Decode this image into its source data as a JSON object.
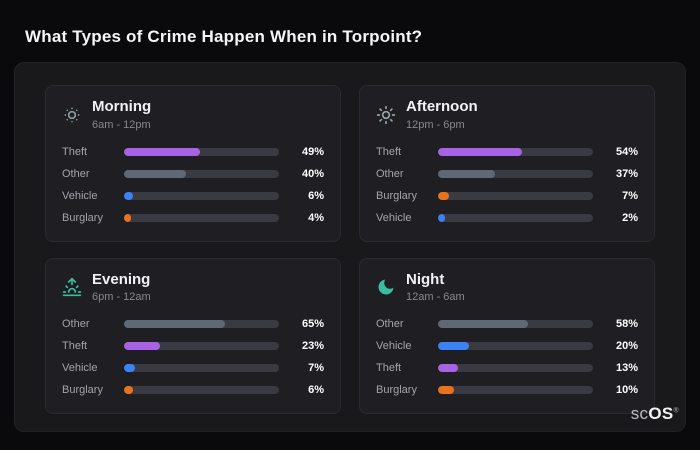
{
  "page": {
    "title": "What Types of Crime Happen When in Torpoint?",
    "brand": {
      "prefix": "sc",
      "suffix": "OS",
      "reg": "®"
    }
  },
  "colors": {
    "theft": "#a763e3",
    "other": "#5f6976",
    "vehicle": "#3b82f6",
    "burglary": "#e8731c",
    "track": "#3a3a42",
    "icon_morning": "#8d9ba0",
    "icon_afternoon": "#9aa2ab",
    "icon_evening": "#3cbc9e",
    "icon_night": "#3cbc9e"
  },
  "chart_data": [
    {
      "type": "bar",
      "title": "Morning",
      "subtitle": "6am - 12pm",
      "icon": "sun-dim-icon",
      "xlim": [
        0,
        100
      ],
      "categories": [
        "Theft",
        "Other",
        "Vehicle",
        "Burglary"
      ],
      "values": [
        49,
        40,
        6,
        4
      ],
      "rows": [
        {
          "label": "Theft",
          "value": 49,
          "display": "49%",
          "color_key": "theft"
        },
        {
          "label": "Other",
          "value": 40,
          "display": "40%",
          "color_key": "other"
        },
        {
          "label": "Vehicle",
          "value": 6,
          "display": "6%",
          "color_key": "vehicle"
        },
        {
          "label": "Burglary",
          "value": 4,
          "display": "4%",
          "color_key": "burglary"
        }
      ]
    },
    {
      "type": "bar",
      "title": "Afternoon",
      "subtitle": "12pm - 6pm",
      "icon": "sun-icon",
      "xlim": [
        0,
        100
      ],
      "categories": [
        "Theft",
        "Other",
        "Burglary",
        "Vehicle"
      ],
      "values": [
        54,
        37,
        7,
        2
      ],
      "rows": [
        {
          "label": "Theft",
          "value": 54,
          "display": "54%",
          "color_key": "theft"
        },
        {
          "label": "Other",
          "value": 37,
          "display": "37%",
          "color_key": "other"
        },
        {
          "label": "Burglary",
          "value": 7,
          "display": "7%",
          "color_key": "burglary"
        },
        {
          "label": "Vehicle",
          "value": 2,
          "display": "2%",
          "color_key": "vehicle"
        }
      ]
    },
    {
      "type": "bar",
      "title": "Evening",
      "subtitle": "6pm - 12am",
      "icon": "sunset-icon",
      "xlim": [
        0,
        100
      ],
      "categories": [
        "Other",
        "Theft",
        "Vehicle",
        "Burglary"
      ],
      "values": [
        65,
        23,
        7,
        6
      ],
      "rows": [
        {
          "label": "Other",
          "value": 65,
          "display": "65%",
          "color_key": "other"
        },
        {
          "label": "Theft",
          "value": 23,
          "display": "23%",
          "color_key": "theft"
        },
        {
          "label": "Vehicle",
          "value": 7,
          "display": "7%",
          "color_key": "vehicle"
        },
        {
          "label": "Burglary",
          "value": 6,
          "display": "6%",
          "color_key": "burglary"
        }
      ]
    },
    {
      "type": "bar",
      "title": "Night",
      "subtitle": "12am - 6am",
      "icon": "moon-icon",
      "xlim": [
        0,
        100
      ],
      "categories": [
        "Other",
        "Vehicle",
        "Theft",
        "Burglary"
      ],
      "values": [
        58,
        20,
        13,
        10
      ],
      "rows": [
        {
          "label": "Other",
          "value": 58,
          "display": "58%",
          "color_key": "other"
        },
        {
          "label": "Vehicle",
          "value": 20,
          "display": "20%",
          "color_key": "vehicle"
        },
        {
          "label": "Theft",
          "value": 13,
          "display": "13%",
          "color_key": "theft"
        },
        {
          "label": "Burglary",
          "value": 10,
          "display": "10%",
          "color_key": "burglary"
        }
      ]
    }
  ]
}
